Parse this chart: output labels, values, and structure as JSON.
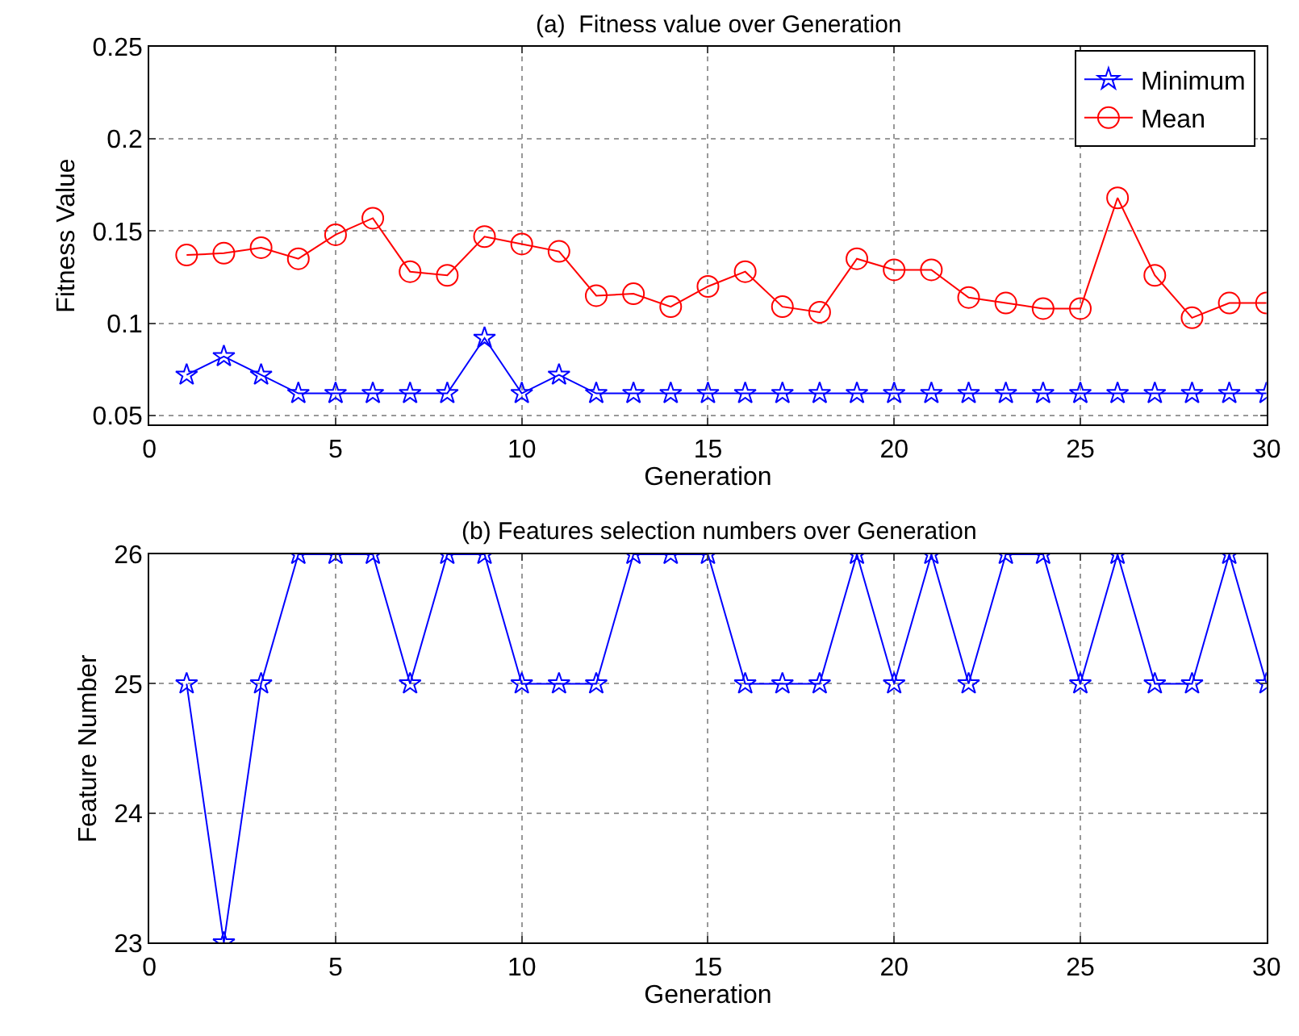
{
  "chart_data": [
    {
      "type": "line",
      "title": "(a)  Fitness value over Generation",
      "xlabel": "Generation",
      "ylabel": "Fitness Value",
      "x": [
        1,
        2,
        3,
        4,
        5,
        6,
        7,
        8,
        9,
        10,
        11,
        12,
        13,
        14,
        15,
        16,
        17,
        18,
        19,
        20,
        21,
        22,
        23,
        24,
        25,
        26,
        27,
        28,
        29,
        30
      ],
      "series": [
        {
          "name": "Minimum",
          "color": "#0000ff",
          "marker": "star",
          "values": [
            0.072,
            0.082,
            0.072,
            0.062,
            0.062,
            0.062,
            0.062,
            0.062,
            0.092,
            0.062,
            0.072,
            0.062,
            0.062,
            0.062,
            0.062,
            0.062,
            0.062,
            0.062,
            0.062,
            0.062,
            0.062,
            0.062,
            0.062,
            0.062,
            0.062,
            0.062,
            0.062,
            0.062,
            0.062,
            0.062
          ]
        },
        {
          "name": "Mean",
          "color": "#ff0000",
          "marker": "circle",
          "values": [
            0.137,
            0.138,
            0.141,
            0.135,
            0.148,
            0.157,
            0.128,
            0.126,
            0.147,
            0.143,
            0.139,
            0.115,
            0.116,
            0.109,
            0.12,
            0.128,
            0.109,
            0.106,
            0.135,
            0.129,
            0.129,
            0.114,
            0.111,
            0.108,
            0.108,
            0.168,
            0.126,
            0.103,
            0.111,
            0.111
          ]
        }
      ],
      "xlim": [
        0,
        30
      ],
      "xticks": [
        0,
        5,
        10,
        15,
        20,
        25,
        30
      ],
      "ylim": [
        0.045,
        0.25
      ],
      "yticks": [
        0.05,
        0.1,
        0.15,
        0.2,
        0.25
      ],
      "grid": true,
      "legend": "top right",
      "line_style": "solid"
    },
    {
      "type": "line",
      "title": "(b) Features selection numbers over Generation",
      "xlabel": "Generation",
      "ylabel": "Feature Number",
      "x": [
        1,
        2,
        3,
        4,
        5,
        6,
        7,
        8,
        9,
        10,
        11,
        12,
        13,
        14,
        15,
        16,
        17,
        18,
        19,
        20,
        21,
        22,
        23,
        24,
        25,
        26,
        27,
        28,
        29,
        30
      ],
      "series": [
        {
          "color": "#0000ff",
          "marker": "star",
          "values": [
            25,
            23,
            25,
            26,
            26,
            26,
            25,
            26,
            26,
            25,
            25,
            25,
            26,
            26,
            26,
            25,
            25,
            25,
            26,
            25,
            26,
            25,
            26,
            26,
            25,
            26,
            25,
            25,
            26,
            25
          ]
        }
      ],
      "xlim": [
        0,
        30
      ],
      "xticks": [
        0,
        5,
        10,
        15,
        20,
        25,
        30
      ],
      "ylim": [
        23,
        26
      ],
      "yticks": [
        23,
        24,
        25,
        26
      ],
      "grid": true,
      "legend": false,
      "line_style": "solid"
    }
  ]
}
